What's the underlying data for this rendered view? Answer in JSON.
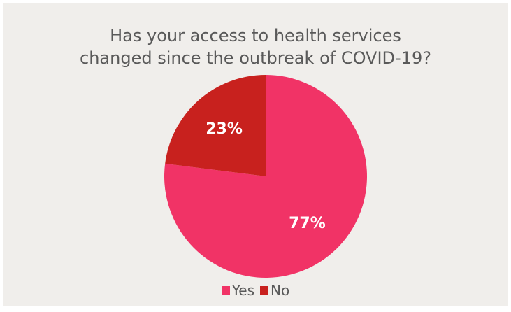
{
  "chart_data": {
    "type": "pie",
    "title_lines": [
      "Has your access to health services",
      "changed since the outbreak of COVID-19?"
    ],
    "slices": [
      {
        "label": "Yes",
        "value": 77,
        "display": "77%",
        "color": "#f13366"
      },
      {
        "label": "No",
        "value": 23,
        "display": "23%",
        "color": "#c8211e"
      }
    ],
    "legend_position": "bottom",
    "start_angle_deg": 0,
    "direction": "clockwise"
  },
  "colors": {
    "background": "#f0eeeb",
    "text": "#595959",
    "data_label": "#ffffff"
  }
}
